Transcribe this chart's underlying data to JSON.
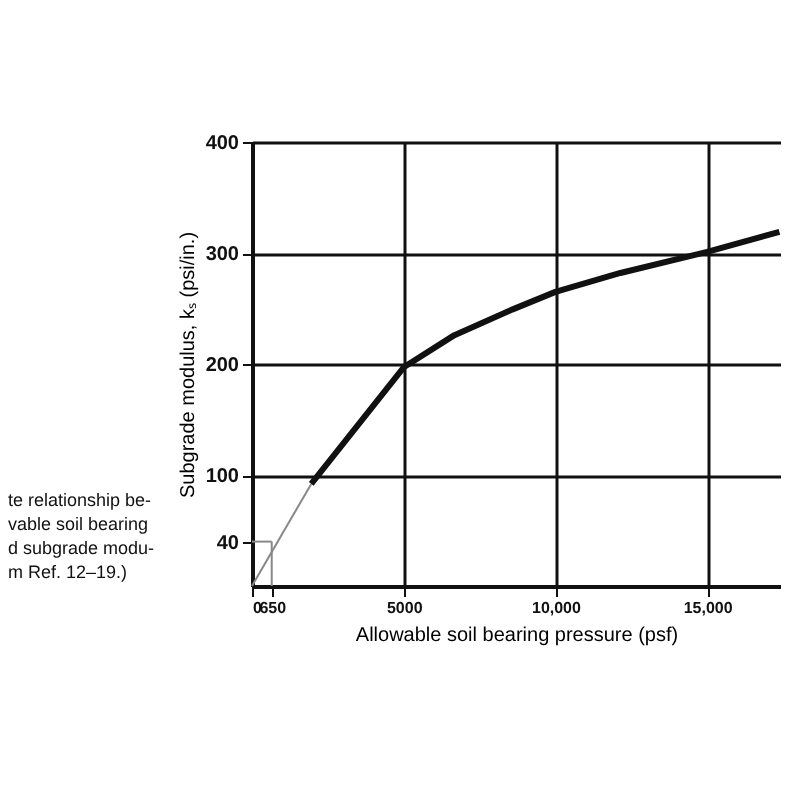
{
  "chart_data": {
    "type": "line",
    "xlabel": "Allowable soil bearing pressure (psf)",
    "ylabel": "Subgrade modulus, kₛ (psi/in.)",
    "annotations": [
      "te relationship be-\nvable soil bearing\nd subgrade modu-\nm Ref. 12–19.)"
    ],
    "series": [
      {
        "color": "#111111",
        "x": [
          1952,
          3810,
          5000,
          6670,
          8570,
          10000,
          12140,
          15000,
          17380
        ],
        "values": [
          92,
          156,
          197,
          226,
          249,
          265,
          282,
          301,
          319
        ],
        "line_style": "solid"
      },
      {
        "color": "#888888",
        "x": [
          0,
          1952
        ],
        "values": [
          0,
          92
        ],
        "line_style": "solid"
      },
      {
        "color": "#888888",
        "x": [
          0,
          650
        ],
        "values": [
          40,
          40
        ],
        "line_style": "solid"
      },
      {
        "color": "#888888",
        "x": [
          650,
          650
        ],
        "values": [
          0,
          40
        ],
        "line_style": "solid"
      }
    ],
    "xlim": [
      0,
      17400
    ],
    "xticks": [
      0,
      650,
      5000,
      {
        "value": 10000,
        "label": "10,000"
      },
      {
        "value": 15000,
        "label": "15,000"
      }
    ],
    "ylim": [
      0,
      400
    ],
    "yticks": [
      40,
      100,
      200,
      300,
      400
    ],
    "grid": true,
    "marker": "none"
  }
}
